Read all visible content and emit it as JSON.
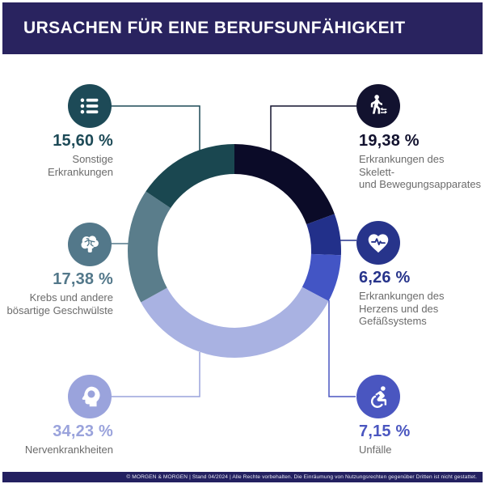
{
  "header": {
    "title": "URSACHEN FÜR EINE BERUFSUNFÄHIGKEIT"
  },
  "theme": {
    "header_bg": "#29235f",
    "footer_bg": "#232060",
    "page_bg": "#ffffff",
    "label_gray": "#6b6b6b"
  },
  "chart_data": {
    "type": "donut",
    "title": "Ursachen für eine Berufsunfähigkeit",
    "unit": "%",
    "start_angle_deg": 0,
    "direction": "clockwise",
    "legend": "none",
    "segments": [
      {
        "label": "Erkrankungen des Skelett- und Bewegungsapparates",
        "value": 19.38,
        "color": "#0b0b28"
      },
      {
        "label": "Erkrankungen des Herzens und des Gefäßsystems",
        "value": 6.26,
        "color": "#22308a"
      },
      {
        "label": "Unfälle",
        "value": 7.15,
        "color": "#4355c5"
      },
      {
        "label": "Nervenkrankheiten",
        "value": 34.23,
        "color": "#a9b2e2"
      },
      {
        "label": "Krebs und andere bösartige Geschwülste",
        "value": 17.38,
        "color": "#5a7d8b"
      },
      {
        "label": "Sonstige Erkrankungen",
        "value": 15.6,
        "color": "#1a4750"
      }
    ]
  },
  "callouts": [
    {
      "id": "sonstige",
      "icon": "list-icon",
      "percent": "15,60 %",
      "label": "Sonstige\nErkrankungen",
      "color": "#1d4a57"
    },
    {
      "id": "skelett",
      "icon": "walking-person-icon",
      "percent": "19,38 %",
      "label": "Erkrankungen des Skelett-\nund Bewegungsapparates",
      "color": "#12122f"
    },
    {
      "id": "krebs",
      "icon": "brain-icon",
      "percent": "17,38 %",
      "label": "Krebs und andere\nbösartige Geschwülste",
      "color": "#53788a"
    },
    {
      "id": "herz",
      "icon": "heart-pulse-icon",
      "percent": "6,26 %",
      "label": "Erkrankungen des\nHerzens und des\nGefäßsystems",
      "color": "#27348b"
    },
    {
      "id": "nerven",
      "icon": "head-mind-icon",
      "percent": "34,23 %",
      "label": "Nervenkrankheiten",
      "color": "#9aa3dc"
    },
    {
      "id": "unfaelle",
      "icon": "wheelchair-icon",
      "percent": "7,15 %",
      "label": "Unfälle",
      "color": "#4a56c0"
    }
  ],
  "footer": {
    "text": "© MORGEN & MORGEN | Stand 04/2024 | Alle Rechte vorbehalten. Die Einräumung von Nutzungsrechten gegenüber Dritten ist nicht gestattet."
  }
}
